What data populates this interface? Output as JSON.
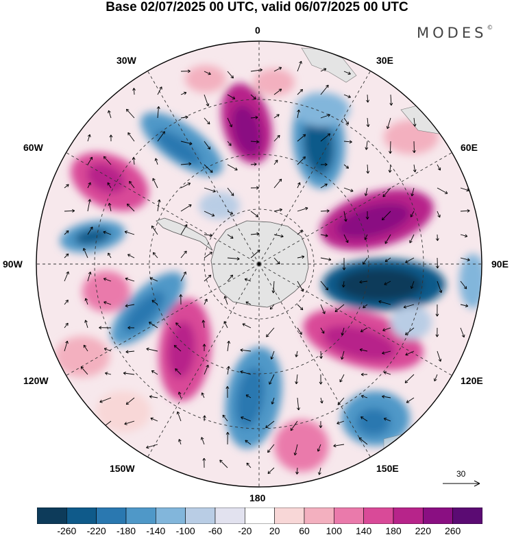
{
  "title": "Base 02/07/2025 00 UTC, valid 06/07/2025 00 UTC",
  "brand": "MODES",
  "brand_mark": "©",
  "longitude_labels": {
    "lon_0": "0",
    "lon_30e": "30E",
    "lon_60e": "60E",
    "lon_90e": "90E",
    "lon_120e": "120E",
    "lon_150e": "150E",
    "lon_180": "180",
    "lon_150w": "150W",
    "lon_120w": "120W",
    "lon_90w": "90W",
    "lon_60w": "60W",
    "lon_30w": "30W"
  },
  "vector_reference": "30",
  "colorbar": {
    "ticks": [
      "-260",
      "-220",
      "-180",
      "-140",
      "-100",
      "-60",
      "-20",
      "20",
      "60",
      "100",
      "140",
      "180",
      "220",
      "260"
    ],
    "colors": [
      "#0d3b5a",
      "#0f5a8a",
      "#2a78b0",
      "#4f98c8",
      "#82b6db",
      "#b9cde5",
      "#e2e2ef",
      "#ffffff",
      "#f8d7d7",
      "#f3b0bf",
      "#ea7aab",
      "#d94a98",
      "#b7248a",
      "#8a0f82",
      "#5b0b73"
    ]
  },
  "colors": {
    "land": "#e4e4e4",
    "outline": "#000000",
    "grid": "#333333"
  }
}
